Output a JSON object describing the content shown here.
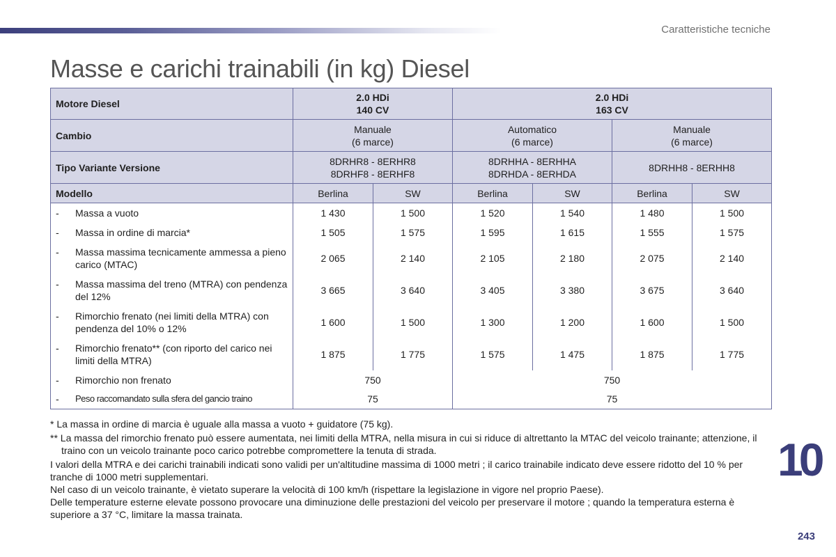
{
  "header": {
    "section": "Caratteristiche tecniche"
  },
  "title": "Masse e carichi trainabili (in kg) Diesel",
  "table": {
    "engine_label": "Motore Diesel",
    "engines": [
      {
        "line1": "2.0 HDi",
        "line2": "140 CV"
      },
      {
        "line1": "2.0 HDi",
        "line2": "163 CV"
      }
    ],
    "gearbox_label": "Cambio",
    "gearboxes": [
      {
        "line1": "Manuale",
        "line2": "(6 marce)"
      },
      {
        "line1": "Automatico",
        "line2": "(6 marce)"
      },
      {
        "line1": "Manuale",
        "line2": "(6 marce)"
      }
    ],
    "variant_label": "Tipo Variante Versione",
    "variants": [
      {
        "line1": "8DRHR8 - 8ERHR8",
        "line2": "8DRHF8 - 8ERHF8"
      },
      {
        "line1": "8DRHHA - 8ERHHA",
        "line2": "8DRHDA - 8ERHDA"
      },
      {
        "line1": "8DRHH8 - 8ERHH8",
        "line2": ""
      }
    ],
    "model_label": "Modello",
    "models": [
      "Berlina",
      "SW",
      "Berlina",
      "SW",
      "Berlina",
      "SW"
    ],
    "dash": "-",
    "rows": [
      {
        "label": "Massa a vuoto",
        "values": [
          "1 430",
          "1 500",
          "1 520",
          "1 540",
          "1 480",
          "1 500"
        ]
      },
      {
        "label": "Massa in ordine di marcia*",
        "values": [
          "1 505",
          "1 575",
          "1 595",
          "1 615",
          "1 555",
          "1 575"
        ]
      },
      {
        "label": "Massa massima tecnicamente ammessa a pieno carico (MTAC)",
        "values": [
          "2 065",
          "2 140",
          "2 105",
          "2 180",
          "2 075",
          "2 140"
        ]
      },
      {
        "label": "Massa massima del treno (MTRA) con pendenza del 12%",
        "values": [
          "3 665",
          "3 640",
          "3 405",
          "3 380",
          "3 675",
          "3 640"
        ]
      },
      {
        "label": "Rimorchio frenato (nei limiti della MTRA) con pendenza del 10% o 12%",
        "values": [
          "1 600",
          "1 500",
          "1 300",
          "1 200",
          "1 600",
          "1 500"
        ]
      },
      {
        "label": "Rimorchio frenato** (con riporto del carico nei limiti della MTRA)",
        "values": [
          "1 875",
          "1 775",
          "1 575",
          "1 475",
          "1 875",
          "1 775"
        ]
      }
    ],
    "unbraked": {
      "label": "Rimorchio non frenato",
      "values": [
        "750",
        "750"
      ]
    },
    "ball_load": {
      "label": "Peso raccomandato sulla sfera del gancio traino",
      "values": [
        "75",
        "75"
      ]
    }
  },
  "notes": {
    "n1": "* La massa in ordine di marcia è uguale alla massa a vuoto + guidatore (75 kg).",
    "n2": "** La massa del rimorchio frenato può essere aumentata, nei limiti della MTRA, nella misura in cui si riduce di altrettanto la MTAC del veicolo trainante; attenzione, il traino con un veicolo trainante poco carico potrebbe compromettere la tenuta di strada.",
    "p1": "I valori della MTRA e dei carichi trainabili indicati sono validi per un'altitudine massima di 1000 metri ; il carico trainabile indicato deve essere ridotto del 10 % per tranche di 1000 metri supplementari.",
    "p2": "Nel caso di un veicolo trainante, è vietato superare la velocità di 100 km/h (rispettare la legislazione in vigore nel proprio Paese).",
    "p3": "Delle temperature esterne elevate possono provocare una diminuzione delle prestazioni del veicolo per preservare il motore ; quando la temperatura esterna è superiore a 37 °C, limitare la massa trainata."
  },
  "chapter_number": "10",
  "page_number": "243"
}
